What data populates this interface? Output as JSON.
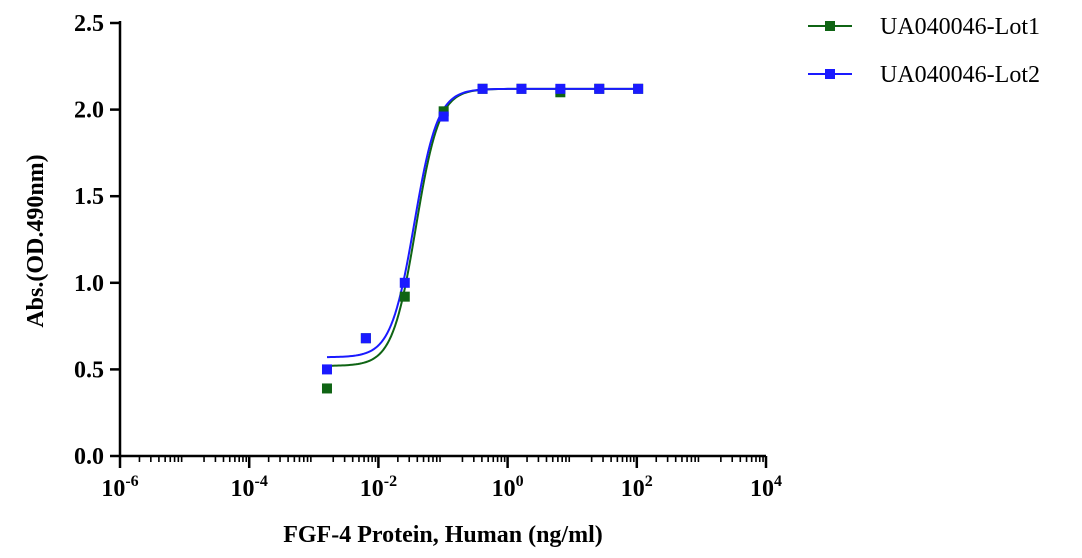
{
  "chart_data": {
    "type": "scatter",
    "xscale": "log",
    "xlabel": "FGF-4 Protein, Human  (ng/ml)",
    "ylabel": "Abs.(OD.490nm)",
    "xlim": [
      1e-06,
      10000
    ],
    "ylim": [
      0,
      2.5
    ],
    "x_ticks": [
      {
        "base": "10",
        "exp": "-6",
        "value": 1e-06
      },
      {
        "base": "10",
        "exp": "-4",
        "value": 0.0001
      },
      {
        "base": "10",
        "exp": "-2",
        "value": 0.01
      },
      {
        "base": "10",
        "exp": "0",
        "value": 1
      },
      {
        "base": "10",
        "exp": "2",
        "value": 100
      },
      {
        "base": "10",
        "exp": "4",
        "value": 10000
      }
    ],
    "y_ticks": [
      "0.0",
      "0.5",
      "1.0",
      "1.5",
      "2.0",
      "2.5"
    ],
    "grid": false,
    "legend_position": "top-right",
    "series": [
      {
        "name": "UA040046-Lot1",
        "color": "#0f6414",
        "marker": "square",
        "x": [
          0.0016,
          0.0064,
          0.0256,
          0.1024,
          0.4096,
          1.6384,
          6.5536,
          26.2144,
          104.8576
        ],
        "y": [
          0.39,
          0.68,
          0.92,
          1.99,
          2.12,
          2.12,
          2.1,
          2.12,
          2.12
        ],
        "fit": {
          "bottom": 0.52,
          "top": 2.12,
          "ec50": 0.038,
          "hill": 2.4
        }
      },
      {
        "name": "UA040046-Lot2",
        "color": "#1a1aff",
        "marker": "square",
        "x": [
          0.0016,
          0.0064,
          0.0256,
          0.1024,
          0.4096,
          1.6384,
          6.5536,
          26.2144,
          104.8576
        ],
        "y": [
          0.5,
          0.68,
          1.0,
          1.96,
          2.12,
          2.12,
          2.12,
          2.12,
          2.12
        ],
        "fit": {
          "bottom": 0.57,
          "top": 2.12,
          "ec50": 0.036,
          "hill": 2.4
        }
      }
    ]
  }
}
